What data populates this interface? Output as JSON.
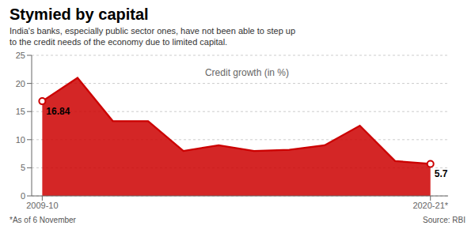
{
  "chart_data": {
    "type": "area",
    "title": "Stymied by capital",
    "subtitle": "India's banks, especially public sector ones, have not been able to step up\nto the credit needs of the economy due to limited capital.",
    "x": [
      0,
      1,
      2,
      3,
      4,
      5,
      6,
      7,
      8,
      9,
      10,
      11
    ],
    "values": [
      16.84,
      21.0,
      13.3,
      13.3,
      8.0,
      9.0,
      8.0,
      8.2,
      9.0,
      12.5,
      6.2,
      5.7
    ],
    "value_labels": [
      "16.84",
      null,
      null,
      null,
      null,
      null,
      null,
      null,
      null,
      null,
      null,
      "5.7"
    ],
    "color": "#cc0000",
    "xlim": [
      -0.3,
      11.5
    ],
    "xticks": [
      {
        "value": 0,
        "label": "2009-10"
      },
      {
        "value": 11,
        "label": "2020-21*"
      }
    ],
    "ylim": [
      0,
      25
    ],
    "yticks": [
      0,
      5,
      10,
      15,
      20,
      25
    ],
    "grid": true,
    "annotations": [
      {
        "text": "Credit growth (in %)",
        "x": 4.5,
        "y": 22.0
      }
    ],
    "footnotes": [
      "*As of 6 November",
      "Source: RBI"
    ]
  }
}
